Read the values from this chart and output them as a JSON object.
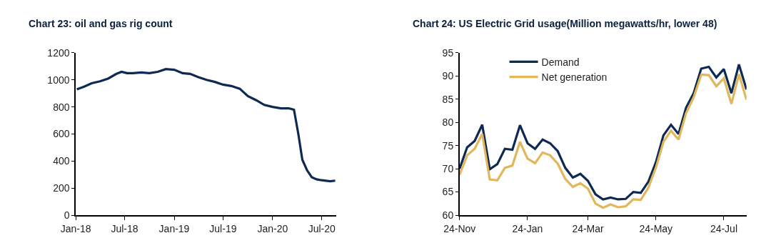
{
  "chart_data": [
    {
      "type": "line",
      "title": "Chart 23: oil and gas rig count",
      "x": [
        "2018-01-05",
        "2018-02-01",
        "2018-03-01",
        "2018-04-01",
        "2018-05-01",
        "2018-06-01",
        "2018-06-20",
        "2018-07-10",
        "2018-08-01",
        "2018-09-01",
        "2018-10-01",
        "2018-11-01",
        "2018-12-01",
        "2019-01-01",
        "2019-02-01",
        "2019-03-01",
        "2019-04-01",
        "2019-05-01",
        "2019-06-01",
        "2019-07-01",
        "2019-08-01",
        "2019-09-01",
        "2019-10-01",
        "2019-11-01",
        "2019-12-01",
        "2020-01-01",
        "2020-02-01",
        "2020-03-01",
        "2020-03-20",
        "2020-04-05",
        "2020-04-20",
        "2020-05-08",
        "2020-05-25",
        "2020-06-12",
        "2020-07-01",
        "2020-08-01",
        "2020-08-20"
      ],
      "series": [
        {
          "color": "#0e2a52",
          "values": [
            930,
            950,
            975,
            990,
            1010,
            1045,
            1060,
            1050,
            1050,
            1055,
            1050,
            1060,
            1080,
            1075,
            1050,
            1045,
            1020,
            1000,
            985,
            965,
            955,
            935,
            880,
            850,
            815,
            800,
            790,
            790,
            780,
            603,
            410,
            330,
            281,
            265,
            258,
            250,
            255
          ]
        }
      ],
      "xlim": [
        "2018-01-01",
        "2020-08-25"
      ],
      "xticks": [
        {
          "value": "2018-01",
          "label": "Jan-18"
        },
        {
          "value": "2018-07",
          "label": "Jul-18"
        },
        {
          "value": "2019-01",
          "label": "Jan-19"
        },
        {
          "value": "2019-07",
          "label": "Jul-19"
        },
        {
          "value": "2020-01",
          "label": "Jan-20"
        },
        {
          "value": "2020-07",
          "label": "Jul-20"
        }
      ],
      "ylim": [
        0,
        1200
      ],
      "yticks": [
        0,
        200,
        400,
        600,
        800,
        1000,
        1200
      ],
      "legend": false,
      "marker": "none",
      "line_style": "solid"
    },
    {
      "type": "line",
      "title": "Chart 24: US Electric Grid usage(Million megawatts/hr, lower 48)",
      "categories": [
        "24-Nov",
        null,
        null,
        null,
        null,
        null,
        null,
        null,
        null,
        "24-Jan",
        null,
        null,
        null,
        null,
        null,
        null,
        null,
        "24-Mar",
        null,
        null,
        null,
        null,
        null,
        null,
        null,
        null,
        "24-May",
        null,
        null,
        null,
        null,
        null,
        null,
        null,
        null,
        "24-Jul",
        null,
        null,
        null
      ],
      "series": [
        {
          "name": "Demand",
          "color": "#0e2a52",
          "values": [
            70.0,
            74.6,
            76.0,
            79.5,
            69.9,
            71.0,
            74.3,
            74.1,
            79.4,
            75.5,
            74.3,
            76.3,
            75.5,
            73.8,
            70.2,
            68.1,
            68.9,
            67.4,
            64.5,
            63.4,
            63.8,
            63.4,
            63.5,
            65.0,
            64.8,
            67.2,
            71.4,
            77.2,
            79.5,
            77.5,
            83.2,
            86.3,
            91.6,
            92.0,
            89.7,
            91.5,
            86.3,
            92.5,
            87.1
          ]
        },
        {
          "name": "Net generation",
          "color": "#e2b65a",
          "values": [
            68.7,
            72.9,
            74.3,
            77.5,
            67.7,
            67.5,
            70.2,
            70.7,
            75.8,
            72.2,
            71.2,
            73.5,
            72.9,
            71.1,
            67.8,
            66.1,
            66.9,
            65.7,
            62.5,
            61.6,
            62.3,
            61.7,
            61.9,
            63.4,
            63.3,
            65.9,
            70.2,
            75.8,
            78.2,
            76.3,
            82.0,
            85.4,
            90.3,
            90.2,
            87.8,
            89.5,
            84.0,
            90.4,
            84.9
          ]
        }
      ],
      "ylim": [
        60,
        95
      ],
      "yticks": [
        60,
        65,
        70,
        75,
        80,
        85,
        90,
        95
      ],
      "legend": "top",
      "marker": "none",
      "line_style": "solid"
    }
  ]
}
